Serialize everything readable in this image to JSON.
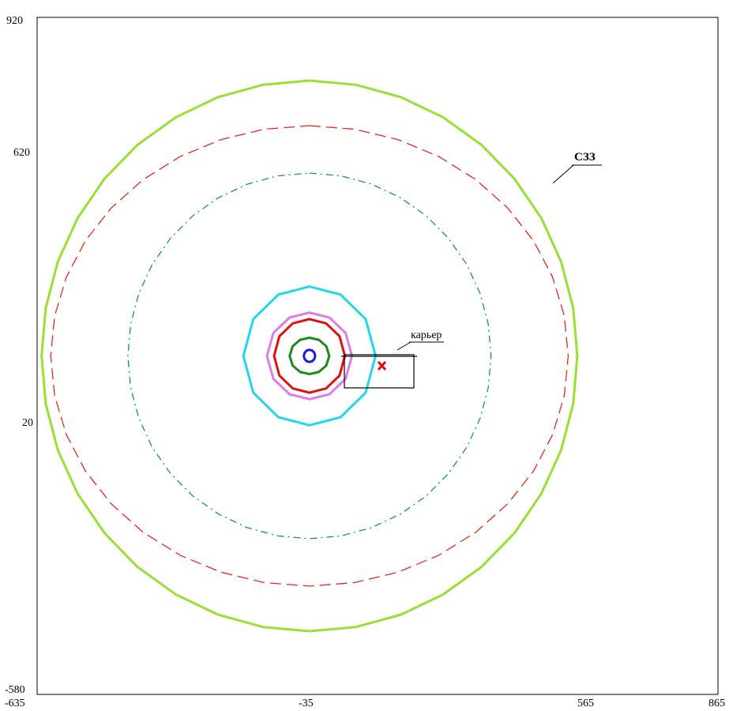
{
  "chart_data": {
    "type": "contour-map",
    "x_ticks": [
      -635,
      -35,
      565,
      865
    ],
    "y_ticks": [
      920,
      620,
      20,
      -580
    ],
    "x_tick_labels": [
      "-635",
      "-35",
      "565",
      "865"
    ],
    "y_tick_labels": [
      "920",
      "620",
      "20",
      "-580"
    ],
    "xlim": [
      -635,
      865
    ],
    "ylim": [
      -580,
      920
    ],
    "grid": false,
    "center": [
      -35,
      170
    ],
    "contours": [
      {
        "color": "#99e033",
        "style": "solid",
        "radius_x": 590,
        "radius_y": 610
      },
      {
        "color": "#e8261c",
        "style": "dashed",
        "radius_x": 570,
        "radius_y": 510
      },
      {
        "color": "#178c8c",
        "style": "dashdot",
        "radius_x": 400,
        "radius_y": 405
      },
      {
        "color": "#22d8e8",
        "style": "solid",
        "radius_x": 140,
        "radius_y": 160
      },
      {
        "color": "#e47ae4",
        "style": "solid",
        "radius_x": 90,
        "radius_y": 100
      },
      {
        "color": "#e01010",
        "style": "solid",
        "radius_x": 75,
        "radius_y": 85
      },
      {
        "color": "#1a8a1a",
        "style": "solid",
        "radius_x": 42,
        "radius_y": 42
      },
      {
        "color": "#1a1ae0",
        "style": "solid",
        "radius_x": 12,
        "radius_y": 14
      }
    ],
    "labels": [
      {
        "text": "карьер",
        "x": 25,
        "y": 185
      },
      {
        "text": "СЗЗ",
        "x": 395,
        "y": 609
      }
    ]
  }
}
